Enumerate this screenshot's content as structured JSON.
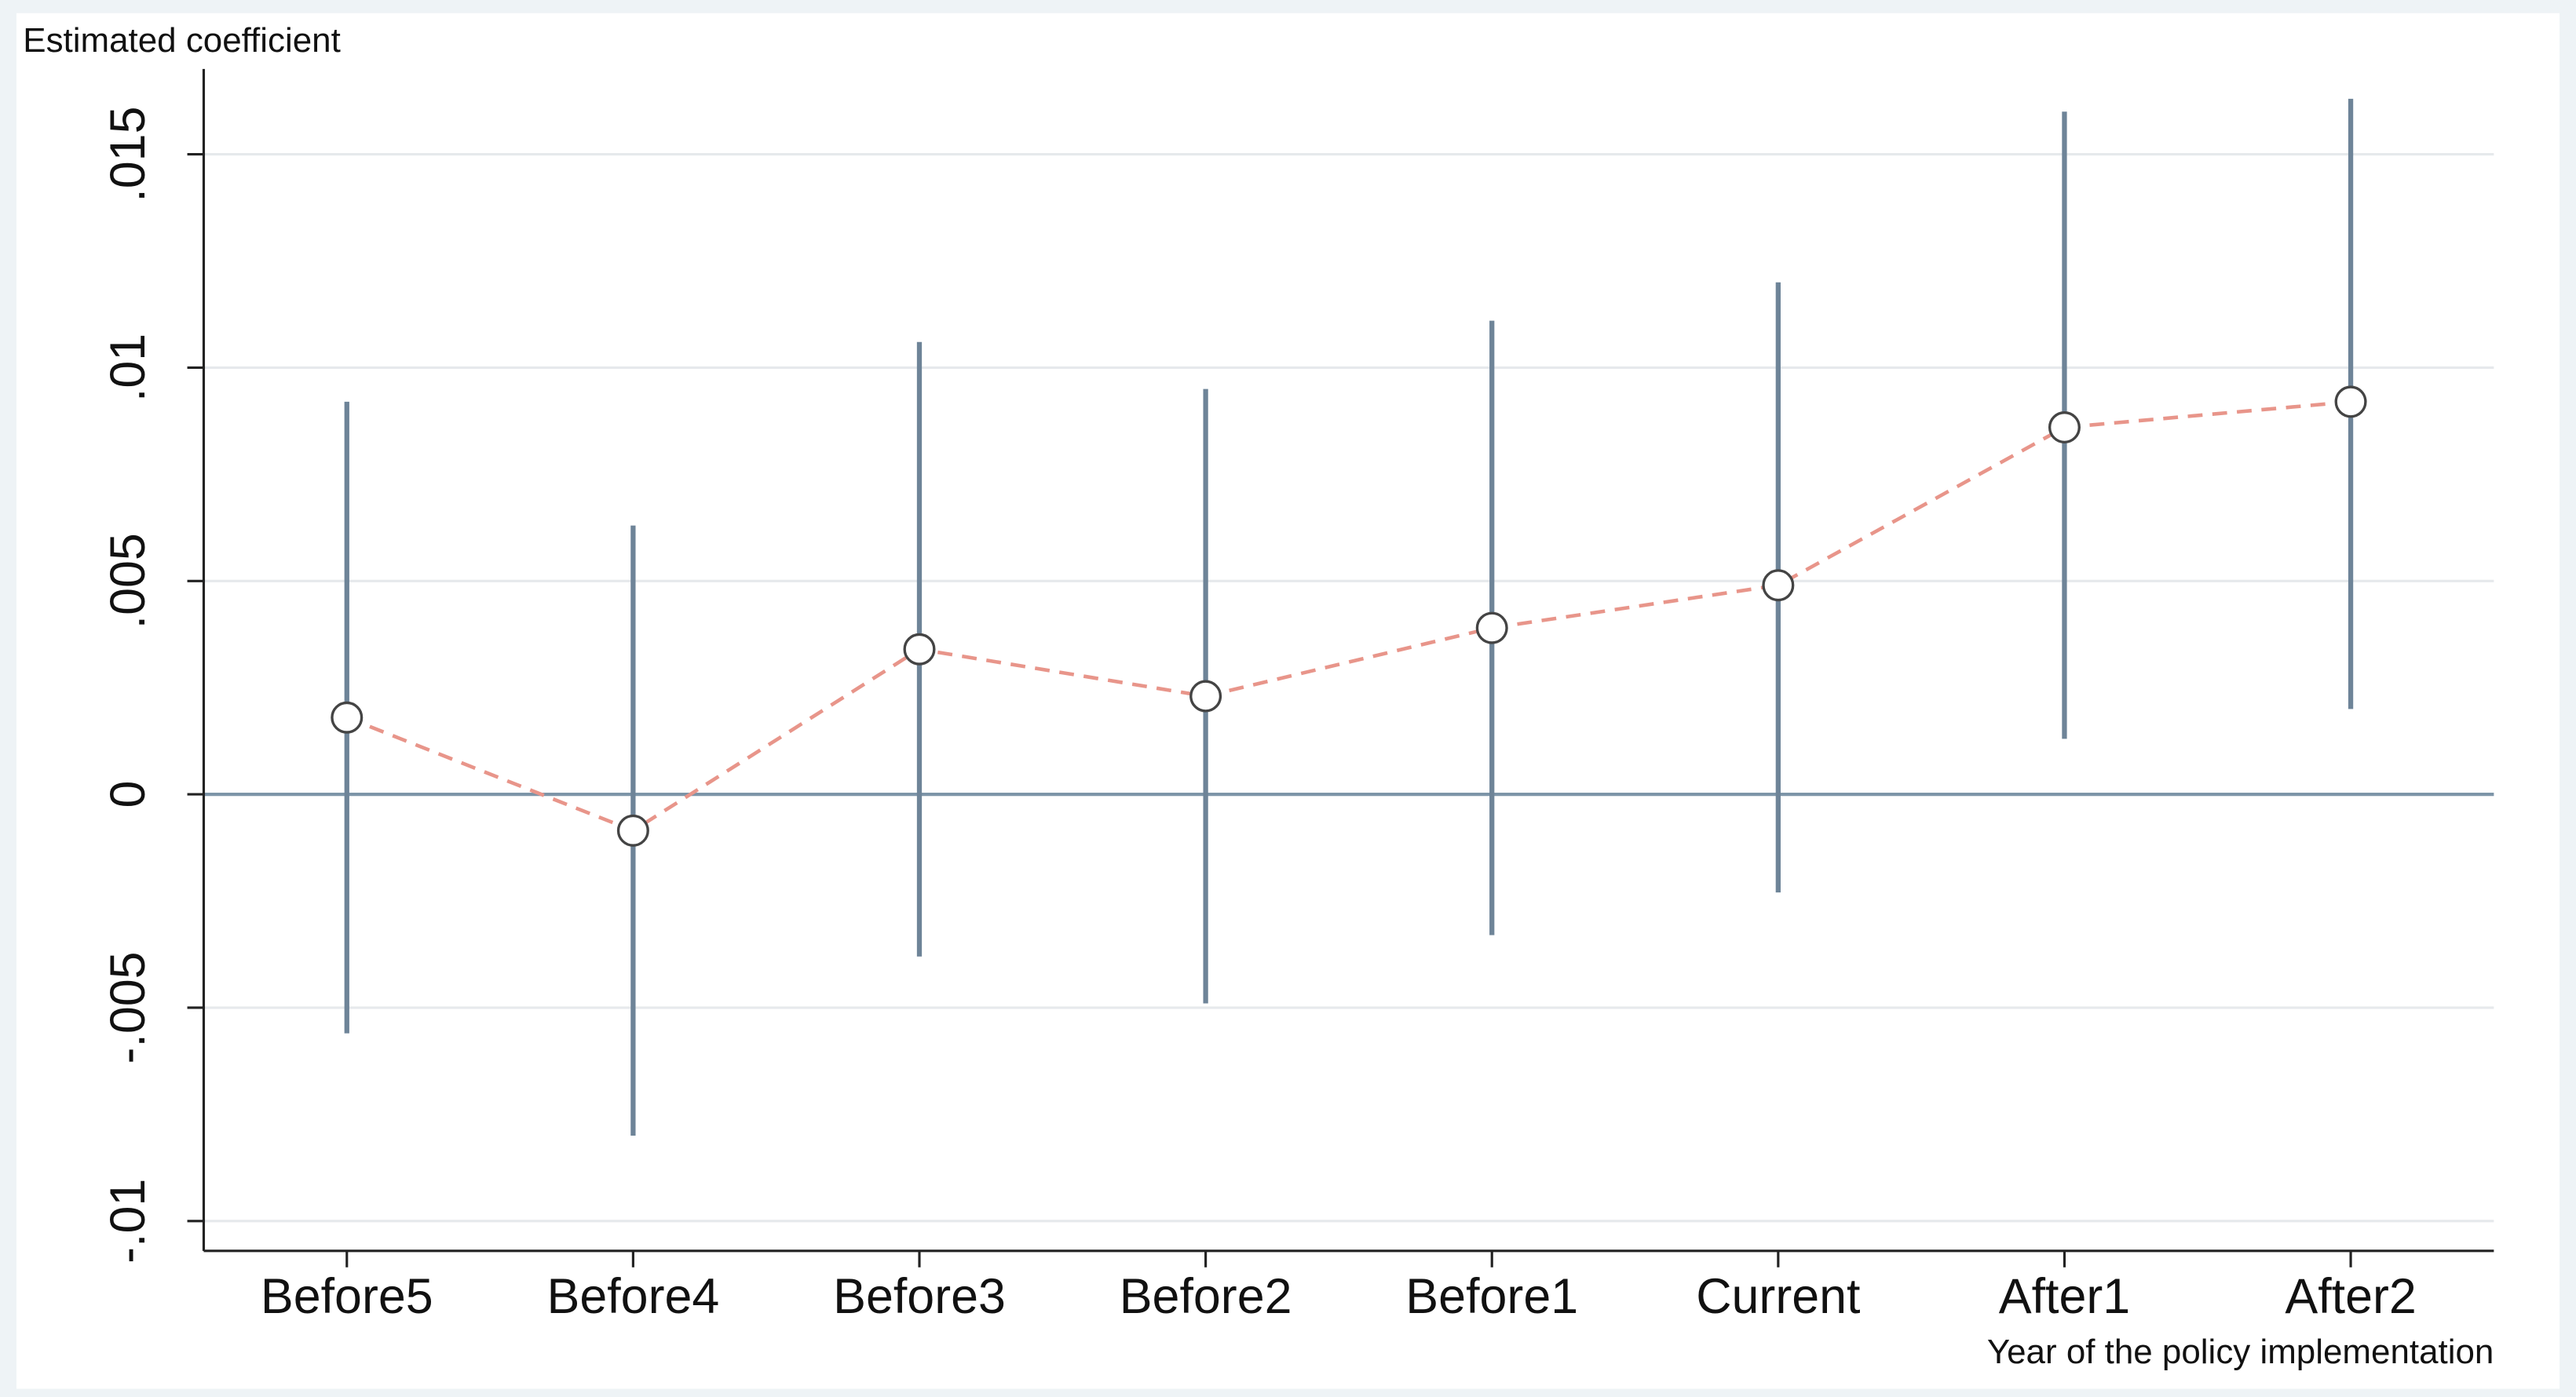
{
  "chart_data": {
    "type": "coefplot",
    "y_axis_title": "Estimated coefficient",
    "x_axis_title": "Year of the policy implementation",
    "categories": [
      "Before5",
      "Before4",
      "Before3",
      "Before2",
      "Before1",
      "Current",
      "After1",
      "After2"
    ],
    "values": [
      0.0018,
      -0.00085,
      0.0034,
      0.0023,
      0.0039,
      0.0049,
      0.0086,
      0.0092
    ],
    "ci_lower": [
      -0.0056,
      -0.008,
      -0.0038,
      -0.0049,
      -0.0033,
      -0.0023,
      0.0013,
      0.002
    ],
    "ci_upper": [
      0.0092,
      0.0063,
      0.0106,
      0.0095,
      0.0111,
      0.012,
      0.016,
      0.0163
    ],
    "line_color": "#e8958a",
    "ci_color": "#6e8498",
    "reference_line": 0,
    "ylim": [
      -0.0107,
      0.017
    ],
    "yticks": [
      {
        "value": -0.01,
        "label": "-.01"
      },
      {
        "value": -0.005,
        "label": "-.005"
      },
      0,
      {
        "value": 0.005,
        "label": ".005"
      },
      {
        "value": 0.01,
        "label": ".01"
      },
      {
        "value": 0.015,
        "label": ".015"
      }
    ],
    "grid": true
  }
}
